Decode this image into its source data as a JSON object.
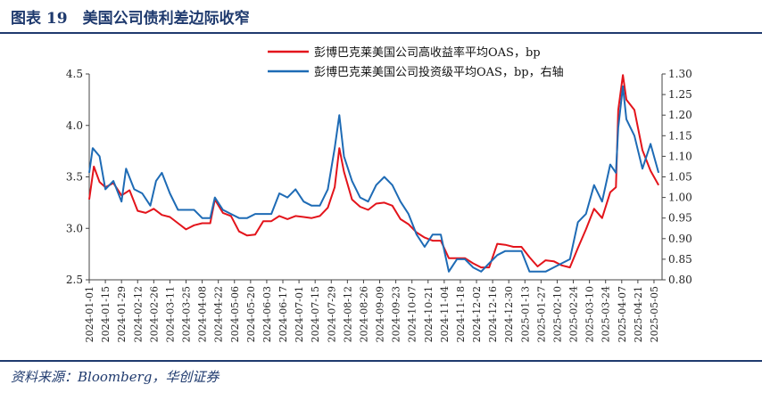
{
  "header": {
    "figure_title": "图表 19　美国公司债利差边际收窄"
  },
  "footer": {
    "source": "资料来源：Bloomberg，华创证券"
  },
  "chart_data": {
    "type": "line",
    "title": "",
    "xlabel": "",
    "ylabel": "",
    "ylim": [
      2.5,
      4.5
    ],
    "y_ticks": [
      "2.5",
      "3.0",
      "3.5",
      "4.0",
      "4.5"
    ],
    "y2lim": [
      0.8,
      1.3
    ],
    "y2_ticks": [
      "0.80",
      "0.85",
      "0.90",
      "0.95",
      "1.00",
      "1.05",
      "1.10",
      "1.15",
      "1.20",
      "1.25",
      "1.30"
    ],
    "x_start": "2024-01-01",
    "x_end": "2025-05-12",
    "x_ticks": [
      "2024-01-01",
      "2024-01-15",
      "2024-01-29",
      "2024-02-12",
      "2024-02-26",
      "2024-03-11",
      "2024-03-25",
      "2024-04-08",
      "2024-04-22",
      "2024-05-06",
      "2024-05-20",
      "2024-06-03",
      "2024-06-17",
      "2024-07-01",
      "2024-07-15",
      "2024-07-29",
      "2024-08-12",
      "2024-08-26",
      "2024-09-09",
      "2024-09-23",
      "2024-10-07",
      "2024-10-21",
      "2024-11-04",
      "2024-11-18",
      "2024-12-02",
      "2024-12-16",
      "2024-12-30",
      "2025-01-13",
      "2025-01-27",
      "2025-02-10",
      "2025-02-24",
      "2025-03-10",
      "2025-03-24",
      "2025-04-07",
      "2025-04-21",
      "2025-05-05"
    ],
    "legend_position": "top-right",
    "grid": false,
    "series": [
      {
        "name": "彭博巴克莱美国公司高收益率平均OAS，bp",
        "axis": "left",
        "color": "#e3141b",
        "points": [
          [
            "2024-01-01",
            3.28
          ],
          [
            "2024-01-05",
            3.6
          ],
          [
            "2024-01-10",
            3.45
          ],
          [
            "2024-01-15",
            3.4
          ],
          [
            "2024-01-22",
            3.44
          ],
          [
            "2024-01-29",
            3.32
          ],
          [
            "2024-02-05",
            3.37
          ],
          [
            "2024-02-12",
            3.17
          ],
          [
            "2024-02-19",
            3.15
          ],
          [
            "2024-02-26",
            3.19
          ],
          [
            "2024-03-04",
            3.13
          ],
          [
            "2024-03-11",
            3.11
          ],
          [
            "2024-03-18",
            3.05
          ],
          [
            "2024-03-25",
            2.99
          ],
          [
            "2024-04-01",
            3.03
          ],
          [
            "2024-04-08",
            3.05
          ],
          [
            "2024-04-15",
            3.05
          ],
          [
            "2024-04-19",
            3.28
          ],
          [
            "2024-04-26",
            3.15
          ],
          [
            "2024-05-03",
            3.12
          ],
          [
            "2024-05-10",
            2.97
          ],
          [
            "2024-05-17",
            2.93
          ],
          [
            "2024-05-24",
            2.94
          ],
          [
            "2024-05-31",
            3.07
          ],
          [
            "2024-06-07",
            3.07
          ],
          [
            "2024-06-14",
            3.12
          ],
          [
            "2024-06-21",
            3.09
          ],
          [
            "2024-06-28",
            3.12
          ],
          [
            "2024-07-05",
            3.11
          ],
          [
            "2024-07-12",
            3.1
          ],
          [
            "2024-07-19",
            3.12
          ],
          [
            "2024-07-26",
            3.2
          ],
          [
            "2024-08-01",
            3.4
          ],
          [
            "2024-08-05",
            3.78
          ],
          [
            "2024-08-09",
            3.55
          ],
          [
            "2024-08-16",
            3.28
          ],
          [
            "2024-08-23",
            3.21
          ],
          [
            "2024-08-30",
            3.18
          ],
          [
            "2024-09-06",
            3.24
          ],
          [
            "2024-09-13",
            3.25
          ],
          [
            "2024-09-20",
            3.22
          ],
          [
            "2024-09-27",
            3.09
          ],
          [
            "2024-10-04",
            3.04
          ],
          [
            "2024-10-11",
            2.96
          ],
          [
            "2024-10-18",
            2.91
          ],
          [
            "2024-10-25",
            2.88
          ],
          [
            "2024-11-01",
            2.88
          ],
          [
            "2024-11-08",
            2.71
          ],
          [
            "2024-11-15",
            2.71
          ],
          [
            "2024-11-22",
            2.71
          ],
          [
            "2024-11-29",
            2.66
          ],
          [
            "2024-12-06",
            2.62
          ],
          [
            "2024-12-13",
            2.62
          ],
          [
            "2024-12-20",
            2.85
          ],
          [
            "2024-12-27",
            2.84
          ],
          [
            "2025-01-03",
            2.82
          ],
          [
            "2025-01-10",
            2.82
          ],
          [
            "2025-01-17",
            2.72
          ],
          [
            "2025-01-24",
            2.63
          ],
          [
            "2025-01-31",
            2.69
          ],
          [
            "2025-02-07",
            2.68
          ],
          [
            "2025-02-14",
            2.64
          ],
          [
            "2025-02-21",
            2.62
          ],
          [
            "2025-02-28",
            2.81
          ],
          [
            "2025-03-07",
            2.99
          ],
          [
            "2025-03-14",
            3.19
          ],
          [
            "2025-03-21",
            3.1
          ],
          [
            "2025-03-28",
            3.35
          ],
          [
            "2025-04-02",
            3.4
          ],
          [
            "2025-04-04",
            4.15
          ],
          [
            "2025-04-08",
            4.49
          ],
          [
            "2025-04-11",
            4.25
          ],
          [
            "2025-04-18",
            4.15
          ],
          [
            "2025-04-25",
            3.76
          ],
          [
            "2025-05-02",
            3.56
          ],
          [
            "2025-05-09",
            3.42
          ]
        ]
      },
      {
        "name": "彭博巴克莱美国公司投资级平均OAS，bp，右轴",
        "axis": "right",
        "color": "#1e6bb5",
        "points": [
          [
            "2024-01-01",
            1.06
          ],
          [
            "2024-01-04",
            1.12
          ],
          [
            "2024-01-10",
            1.1
          ],
          [
            "2024-01-15",
            1.02
          ],
          [
            "2024-01-22",
            1.04
          ],
          [
            "2024-01-29",
            0.99
          ],
          [
            "2024-02-02",
            1.07
          ],
          [
            "2024-02-09",
            1.02
          ],
          [
            "2024-02-16",
            1.01
          ],
          [
            "2024-02-23",
            0.98
          ],
          [
            "2024-02-28",
            1.04
          ],
          [
            "2024-03-04",
            1.06
          ],
          [
            "2024-03-11",
            1.01
          ],
          [
            "2024-03-18",
            0.97
          ],
          [
            "2024-03-25",
            0.97
          ],
          [
            "2024-04-01",
            0.97
          ],
          [
            "2024-04-08",
            0.95
          ],
          [
            "2024-04-15",
            0.95
          ],
          [
            "2024-04-19",
            1.0
          ],
          [
            "2024-04-26",
            0.97
          ],
          [
            "2024-05-03",
            0.96
          ],
          [
            "2024-05-10",
            0.95
          ],
          [
            "2024-05-17",
            0.95
          ],
          [
            "2024-05-24",
            0.96
          ],
          [
            "2024-05-31",
            0.96
          ],
          [
            "2024-06-07",
            0.96
          ],
          [
            "2024-06-14",
            1.01
          ],
          [
            "2024-06-21",
            1.0
          ],
          [
            "2024-06-28",
            1.02
          ],
          [
            "2024-07-05",
            0.99
          ],
          [
            "2024-07-12",
            0.98
          ],
          [
            "2024-07-19",
            0.98
          ],
          [
            "2024-07-26",
            1.02
          ],
          [
            "2024-08-01",
            1.12
          ],
          [
            "2024-08-05",
            1.2
          ],
          [
            "2024-08-09",
            1.1
          ],
          [
            "2024-08-16",
            1.04
          ],
          [
            "2024-08-23",
            1.0
          ],
          [
            "2024-08-30",
            0.99
          ],
          [
            "2024-09-06",
            1.03
          ],
          [
            "2024-09-13",
            1.05
          ],
          [
            "2024-09-20",
            1.03
          ],
          [
            "2024-09-27",
            0.99
          ],
          [
            "2024-10-04",
            0.96
          ],
          [
            "2024-10-11",
            0.91
          ],
          [
            "2024-10-18",
            0.88
          ],
          [
            "2024-10-25",
            0.91
          ],
          [
            "2024-11-01",
            0.91
          ],
          [
            "2024-11-08",
            0.82
          ],
          [
            "2024-11-15",
            0.85
          ],
          [
            "2024-11-22",
            0.85
          ],
          [
            "2024-11-29",
            0.83
          ],
          [
            "2024-12-06",
            0.82
          ],
          [
            "2024-12-13",
            0.84
          ],
          [
            "2024-12-20",
            0.86
          ],
          [
            "2024-12-27",
            0.87
          ],
          [
            "2025-01-03",
            0.87
          ],
          [
            "2025-01-10",
            0.87
          ],
          [
            "2025-01-17",
            0.82
          ],
          [
            "2025-01-24",
            0.82
          ],
          [
            "2025-01-31",
            0.82
          ],
          [
            "2025-02-07",
            0.83
          ],
          [
            "2025-02-14",
            0.84
          ],
          [
            "2025-02-21",
            0.85
          ],
          [
            "2025-02-28",
            0.94
          ],
          [
            "2025-03-07",
            0.96
          ],
          [
            "2025-03-14",
            1.03
          ],
          [
            "2025-03-21",
            0.99
          ],
          [
            "2025-03-28",
            1.08
          ],
          [
            "2025-04-02",
            1.06
          ],
          [
            "2025-04-04",
            1.17
          ],
          [
            "2025-04-08",
            1.27
          ],
          [
            "2025-04-11",
            1.19
          ],
          [
            "2025-04-18",
            1.15
          ],
          [
            "2025-04-25",
            1.07
          ],
          [
            "2025-05-02",
            1.13
          ],
          [
            "2025-05-09",
            1.06
          ]
        ]
      }
    ]
  }
}
